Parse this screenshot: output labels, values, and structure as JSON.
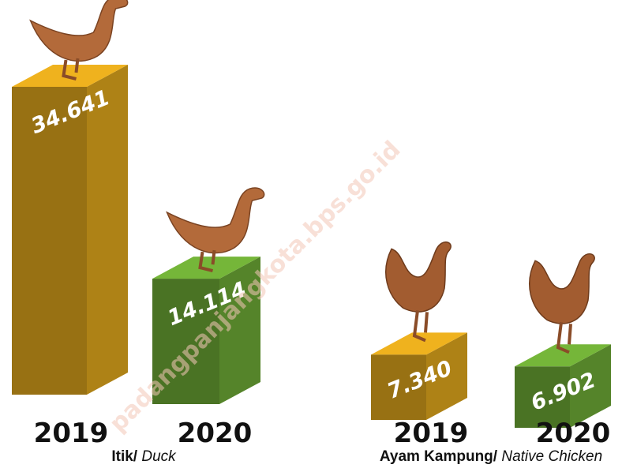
{
  "chart_data": [
    {
      "type": "bar",
      "title": "Itik/",
      "title_en": "Duck",
      "categories": [
        "2019",
        "2020"
      ],
      "values": [
        34641,
        14114
      ],
      "value_labels": [
        "34.641",
        "14.114"
      ],
      "colors": [
        "#d9a21b",
        "#6aa534"
      ]
    },
    {
      "type": "bar",
      "title": "Ayam Kampung/",
      "title_en": "Native Chicken",
      "categories": [
        "2019",
        "2020"
      ],
      "values": [
        7340,
        6902
      ],
      "value_labels": [
        "7.340",
        "6.902"
      ],
      "colors": [
        "#d9a21b",
        "#6aa534"
      ]
    }
  ],
  "watermark": "padangpanjangkota.bps.go.id"
}
